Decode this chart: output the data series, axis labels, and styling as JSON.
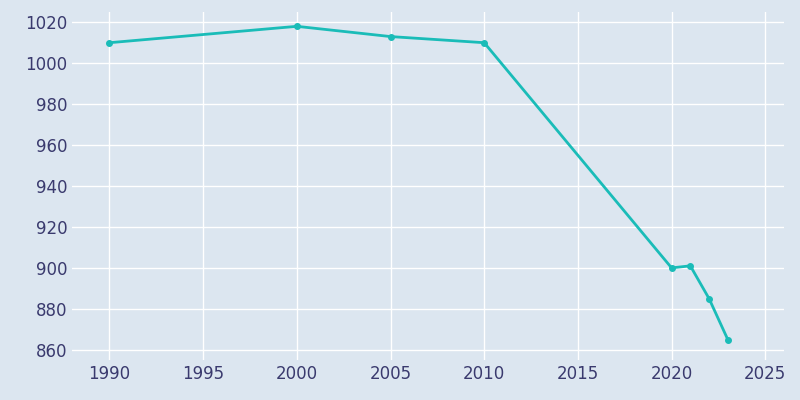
{
  "years": [
    1990,
    2000,
    2005,
    2010,
    2020,
    2021,
    2022,
    2023
  ],
  "population": [
    1010,
    1018,
    1013,
    1010,
    900,
    901,
    885,
    865
  ],
  "line_color": "#1abcb8",
  "marker": "o",
  "marker_size": 4,
  "line_width": 2,
  "bg_color": "#dce6f0",
  "plot_bg_color": "#dce6f0",
  "grid_color": "#ffffff",
  "tick_color": "#3a3a6e",
  "xlim": [
    1988,
    2026
  ],
  "ylim": [
    855,
    1025
  ],
  "xticks": [
    1990,
    1995,
    2000,
    2005,
    2010,
    2015,
    2020,
    2025
  ],
  "yticks": [
    860,
    880,
    900,
    920,
    940,
    960,
    980,
    1000,
    1020
  ],
  "tick_fontsize": 12
}
